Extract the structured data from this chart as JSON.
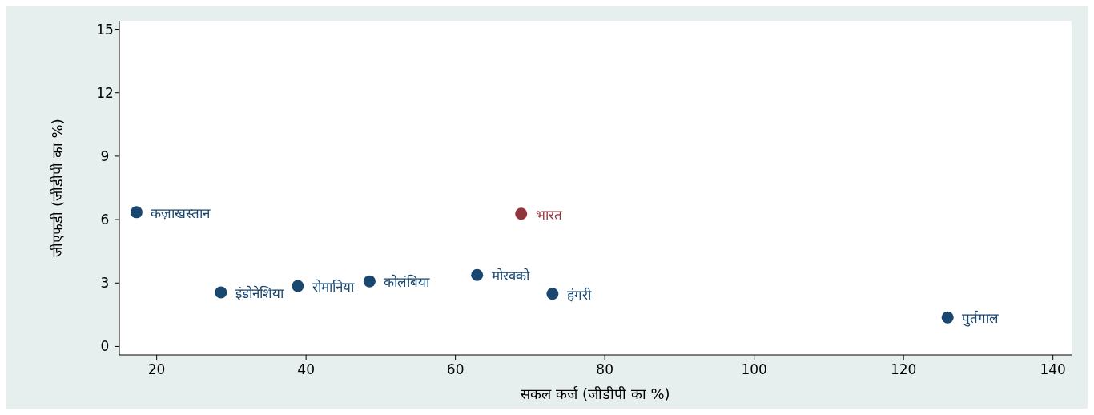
{
  "chart_data": {
    "type": "scatter",
    "xlabel": "सकल कर्ज (जीडीपी का %)",
    "ylabel": "जीएफडी (जीडीपी का %)",
    "x": [
      17.3,
      28.6,
      38.9,
      48.5,
      62.9,
      68.8,
      73.0,
      125.9
    ],
    "values": [
      6.35,
      2.56,
      2.86,
      3.08,
      3.38,
      6.28,
      2.49,
      1.37
    ],
    "colors": [
      "#1a476f",
      "#1a476f",
      "#1a476f",
      "#1a476f",
      "#1a476f",
      "#90353b",
      "#1a476f",
      "#1a476f"
    ],
    "marker": "circle",
    "xlim": [
      15,
      142.5
    ],
    "ylim": [
      -0.4,
      15.4
    ],
    "xticks": [
      20,
      40,
      60,
      80,
      100,
      120,
      140
    ],
    "yticks": [
      0,
      3,
      6,
      9,
      12,
      15
    ],
    "grid": false,
    "annotations": [
      {
        "text": "कज़ाखस्तान",
        "x": 17.3,
        "y": 6.35
      },
      {
        "text": "इंडोनेशिया",
        "x": 28.6,
        "y": 2.56
      },
      {
        "text": "रोमानिया",
        "x": 38.9,
        "y": 2.86
      },
      {
        "text": "कोलंबिया",
        "x": 48.5,
        "y": 3.08
      },
      {
        "text": "मोरक्को",
        "x": 62.9,
        "y": 3.38
      },
      {
        "text": "भारत",
        "x": 68.8,
        "y": 6.28
      },
      {
        "text": "हंगरी",
        "x": 73.0,
        "y": 2.49
      },
      {
        "text": "पुर्तगाल",
        "x": 125.9,
        "y": 1.37
      }
    ]
  }
}
